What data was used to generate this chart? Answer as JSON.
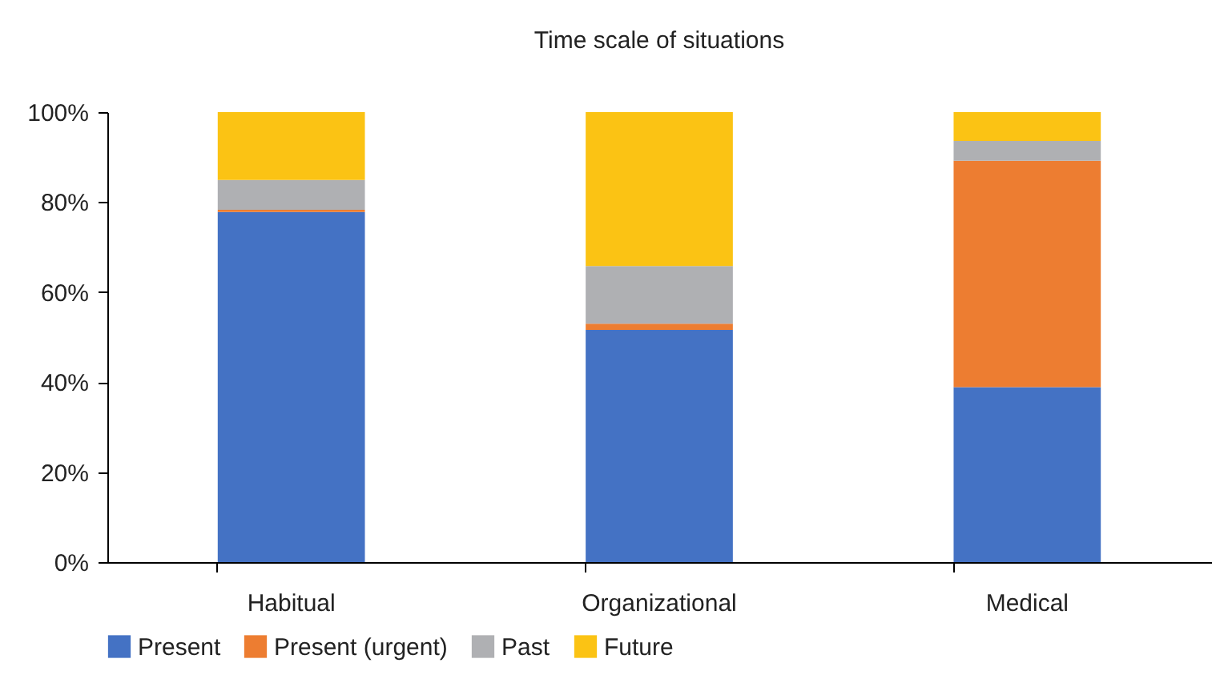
{
  "chart_data": {
    "type": "bar",
    "title": "Time scale of situations",
    "stacked": true,
    "categories": [
      "Habitual",
      "Organizational",
      "Medical"
    ],
    "series": [
      {
        "name": "Present",
        "color": "#4472c4",
        "values": [
          77.8,
          51.6,
          38.9
        ]
      },
      {
        "name": "Present (urgent)",
        "color": "#ed7d31",
        "values": [
          0.5,
          1.4,
          50.3
        ]
      },
      {
        "name": "Past",
        "color": "#afb0b3",
        "values": [
          6.6,
          12.8,
          4.4
        ]
      },
      {
        "name": "Future",
        "color": "#fbc314",
        "values": [
          15.1,
          34.2,
          6.4
        ]
      }
    ],
    "ylim": [
      0,
      100
    ],
    "yticks": [
      {
        "value": 0,
        "label": "0%"
      },
      {
        "value": 20,
        "label": "20%"
      },
      {
        "value": 40,
        "label": "40%"
      },
      {
        "value": 60,
        "label": "60%"
      },
      {
        "value": 80,
        "label": "80%"
      },
      {
        "value": 100,
        "label": "100%"
      }
    ],
    "grid": false,
    "legend": "bottom"
  }
}
